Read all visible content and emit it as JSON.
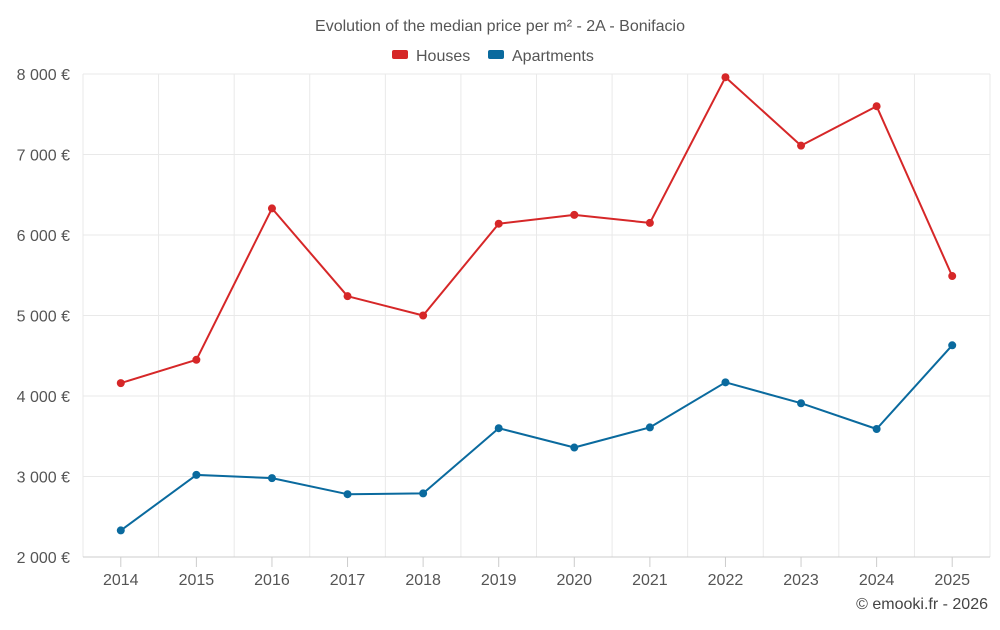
{
  "chart_data": {
    "type": "line",
    "title": "Evolution of the median price per m² - 2A - Bonifacio",
    "categories": [
      "2014",
      "2015",
      "2016",
      "2017",
      "2018",
      "2019",
      "2020",
      "2021",
      "2022",
      "2023",
      "2024",
      "2025"
    ],
    "y_ticks": [
      2000,
      3000,
      4000,
      5000,
      6000,
      7000,
      8000
    ],
    "y_tick_labels": [
      "2 000 €",
      "3 000 €",
      "4 000 €",
      "5 000 €",
      "6 000 €",
      "7 000 €",
      "8 000 €"
    ],
    "ylim": [
      2000,
      8000
    ],
    "legend_position": "top-center",
    "grid": true,
    "series": [
      {
        "name": "Houses",
        "color": "#d62728",
        "values": [
          4160,
          4450,
          6330,
          5240,
          5000,
          6140,
          6250,
          6150,
          7960,
          7110,
          7600,
          5490
        ]
      },
      {
        "name": "Apartments",
        "color": "#0a6a9e",
        "values": [
          2330,
          3020,
          2980,
          2780,
          2790,
          3600,
          3360,
          3610,
          4170,
          3910,
          3590,
          4630
        ]
      }
    ]
  },
  "credit": "© emooki.fr - 2026"
}
